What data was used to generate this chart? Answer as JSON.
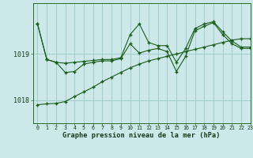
{
  "title": "Graphe pression niveau de la mer (hPa)",
  "bg_color": "#cce8e8",
  "grid_color": "#9cc8c8",
  "line_color": "#1a5c1a",
  "xlim": [
    -0.5,
    23
  ],
  "ylim": [
    1017.5,
    1020.1
  ],
  "yticks": [
    1018.0,
    1019.0
  ],
  "hours": [
    0,
    1,
    2,
    3,
    4,
    5,
    6,
    7,
    8,
    9,
    10,
    11,
    12,
    13,
    14,
    15,
    16,
    17,
    18,
    19,
    20,
    21,
    22,
    23
  ],
  "series1": [
    1019.65,
    1018.88,
    1018.82,
    1018.8,
    1018.82,
    1018.84,
    1018.86,
    1018.88,
    1018.88,
    1018.92,
    1019.42,
    1019.65,
    1019.25,
    1019.18,
    1019.18,
    1018.82,
    1019.12,
    1019.55,
    1019.65,
    1019.7,
    1019.48,
    1019.28,
    1019.15,
    1019.15
  ],
  "series2": [
    1019.65,
    1018.88,
    1018.82,
    1018.6,
    1018.62,
    1018.78,
    1018.82,
    1018.85,
    1018.85,
    1018.9,
    1019.22,
    1019.02,
    1019.08,
    1019.12,
    1019.05,
    1018.62,
    1018.95,
    1019.5,
    1019.6,
    1019.68,
    1019.42,
    1019.22,
    1019.12,
    1019.12
  ],
  "series3": [
    1017.9,
    1017.92,
    1017.93,
    1017.97,
    1018.08,
    1018.18,
    1018.28,
    1018.4,
    1018.5,
    1018.6,
    1018.7,
    1018.78,
    1018.85,
    1018.9,
    1018.95,
    1019.0,
    1019.05,
    1019.1,
    1019.15,
    1019.2,
    1019.25,
    1019.3,
    1019.33,
    1019.33
  ]
}
